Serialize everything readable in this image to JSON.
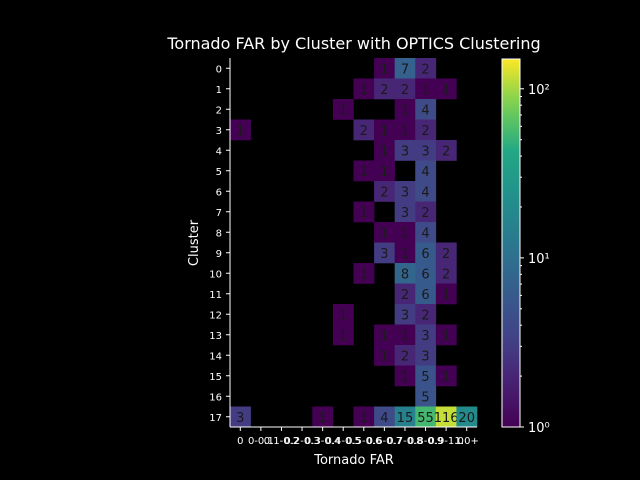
{
  "chart_data": {
    "type": "heatmap",
    "title": "Tornado FAR by Cluster with OPTICS Clustering",
    "xlabel": "Tornado FAR",
    "ylabel": "Cluster",
    "x_categories": [
      "0",
      "0-0.1",
      "0.1-0.2",
      "0.2-0.3",
      "0.3-0.4",
      "0.4-0.5",
      "0.5-0.6",
      "0.6-0.7",
      "0.7-0.8",
      "0.8-0.9",
      "0.9-1.0",
      "1.0+"
    ],
    "x_tick_labels": [
      "0",
      "0-0.1",
      "0.1-0.2",
      "0.2-0.3",
      "0.3-0.4",
      "0.4-0.5",
      "0.5-0.6",
      "0.6-0.7",
      "0.7-0.8",
      "0.8-0.9",
      "0.9-1.0",
      "1.0+"
    ],
    "y_categories": [
      "0",
      "1",
      "2",
      "3",
      "4",
      "5",
      "6",
      "7",
      "8",
      "9",
      "10",
      "11",
      "12",
      "13",
      "14",
      "15",
      "16",
      "17"
    ],
    "values": [
      [
        null,
        null,
        null,
        null,
        null,
        null,
        null,
        1,
        7,
        2,
        null,
        null
      ],
      [
        null,
        null,
        null,
        null,
        null,
        null,
        1,
        2,
        2,
        1,
        1,
        null
      ],
      [
        null,
        null,
        null,
        null,
        null,
        1,
        null,
        null,
        1,
        4,
        null,
        null
      ],
      [
        1,
        null,
        null,
        null,
        null,
        null,
        2,
        1,
        1,
        2,
        null,
        null
      ],
      [
        null,
        null,
        null,
        null,
        null,
        null,
        null,
        1,
        3,
        3,
        2,
        null
      ],
      [
        null,
        null,
        null,
        null,
        null,
        null,
        1,
        1,
        null,
        4,
        null,
        null
      ],
      [
        null,
        null,
        null,
        null,
        null,
        null,
        null,
        2,
        3,
        4,
        null,
        null
      ],
      [
        null,
        null,
        null,
        null,
        null,
        null,
        1,
        null,
        3,
        2,
        null,
        null
      ],
      [
        null,
        null,
        null,
        null,
        null,
        null,
        null,
        1,
        1,
        4,
        null,
        null
      ],
      [
        null,
        null,
        null,
        null,
        null,
        null,
        null,
        3,
        1,
        6,
        2,
        null
      ],
      [
        null,
        null,
        null,
        null,
        null,
        null,
        1,
        null,
        8,
        6,
        2,
        null
      ],
      [
        null,
        null,
        null,
        null,
        null,
        null,
        null,
        null,
        2,
        6,
        1,
        null
      ],
      [
        null,
        null,
        null,
        null,
        null,
        1,
        null,
        null,
        3,
        2,
        null,
        null
      ],
      [
        null,
        null,
        null,
        null,
        null,
        1,
        null,
        1,
        1,
        3,
        1,
        null
      ],
      [
        null,
        null,
        null,
        null,
        null,
        null,
        null,
        1,
        2,
        3,
        null,
        null
      ],
      [
        null,
        null,
        null,
        null,
        null,
        null,
        null,
        null,
        1,
        5,
        1,
        null
      ],
      [
        null,
        null,
        null,
        null,
        null,
        null,
        null,
        null,
        null,
        5,
        null,
        null
      ],
      [
        3,
        null,
        null,
        null,
        1,
        null,
        1,
        4,
        15,
        55,
        116,
        20
      ]
    ],
    "colorbar": {
      "scale": "log",
      "range": [
        1,
        150
      ],
      "tick_labels": [
        "10⁰",
        "10¹",
        "10²"
      ],
      "colormap": "viridis"
    },
    "grid": false
  }
}
